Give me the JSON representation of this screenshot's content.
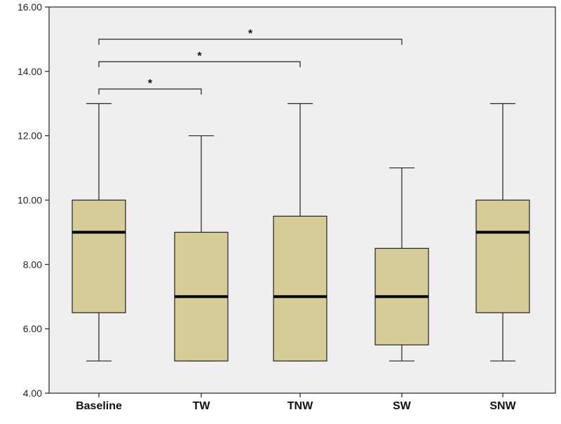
{
  "chart_data": {
    "type": "boxplot",
    "title": "",
    "xlabel": "",
    "ylabel": "",
    "ylim": [
      4,
      16
    ],
    "y_ticks": [
      4,
      6,
      8,
      10,
      12,
      14,
      16
    ],
    "y_tick_labels": [
      "4.00",
      "6.00",
      "8.00",
      "10.00",
      "12.00",
      "14.00",
      "16.00"
    ],
    "grid": false,
    "categories": [
      "Baseline",
      "TW",
      "TNW",
      "SW",
      "SNW"
    ],
    "boxes": [
      {
        "category": "Baseline",
        "min": 5,
        "q1": 6.5,
        "median": 9,
        "q3": 10,
        "max": 13
      },
      {
        "category": "TW",
        "min": 5,
        "q1": 5,
        "median": 7,
        "q3": 9,
        "max": 12
      },
      {
        "category": "TNW",
        "min": 5,
        "q1": 5,
        "median": 7,
        "q3": 9.5,
        "max": 13
      },
      {
        "category": "SW",
        "min": 5,
        "q1": 5.5,
        "median": 7,
        "q3": 8.5,
        "max": 11
      },
      {
        "category": "SNW",
        "min": 5,
        "q1": 6.5,
        "median": 9,
        "q3": 10,
        "max": 13
      }
    ],
    "significance": [
      {
        "from": "Baseline",
        "to": "TW",
        "label": "*"
      },
      {
        "from": "Baseline",
        "to": "TNW",
        "label": "*"
      },
      {
        "from": "Baseline",
        "to": "SW",
        "label": "*"
      }
    ],
    "colors": {
      "box_fill": "#d6cc98",
      "plot_background": "#efefef",
      "line": "#222222"
    }
  }
}
